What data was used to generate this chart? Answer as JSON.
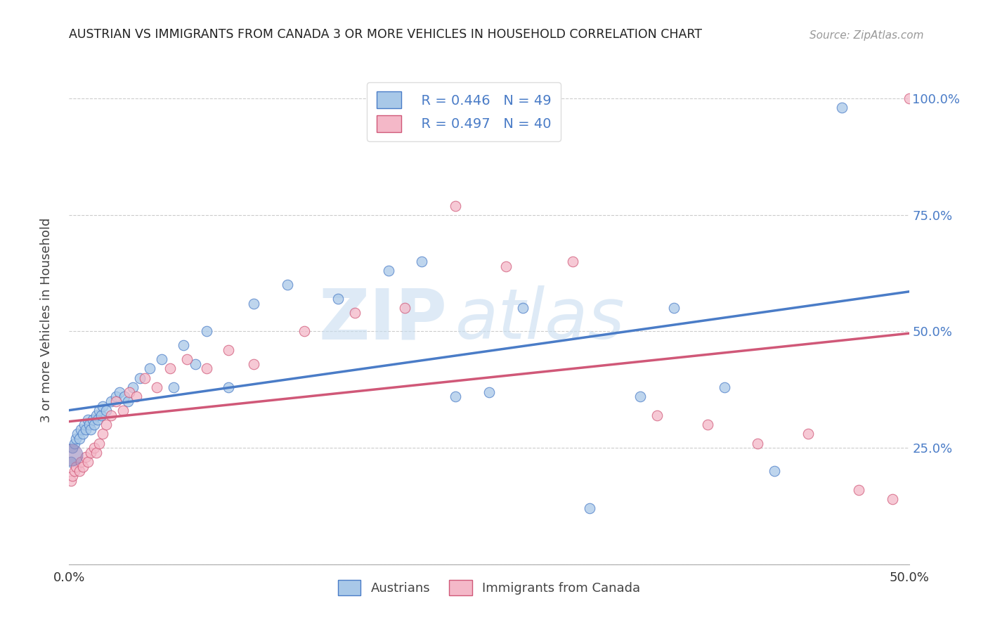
{
  "title": "AUSTRIAN VS IMMIGRANTS FROM CANADA 3 OR MORE VEHICLES IN HOUSEHOLD CORRELATION CHART",
  "source": "Source: ZipAtlas.com",
  "ylabel": "3 or more Vehicles in Household",
  "xlim": [
    0.0,
    0.5
  ],
  "ylim": [
    0.0,
    1.05
  ],
  "legend_labels": [
    "Austrians",
    "Immigrants from Canada"
  ],
  "blue_R": "R = 0.446",
  "blue_N": "N = 49",
  "pink_R": "R = 0.497",
  "pink_N": "N = 40",
  "blue_color": "#a8c8e8",
  "pink_color": "#f4b8c8",
  "blue_line_color": "#4a7cc7",
  "pink_line_color": "#d05878",
  "austrians_x": [
    0.001,
    0.002,
    0.003,
    0.004,
    0.005,
    0.006,
    0.007,
    0.008,
    0.009,
    0.01,
    0.011,
    0.012,
    0.013,
    0.014,
    0.015,
    0.016,
    0.017,
    0.018,
    0.019,
    0.02,
    0.022,
    0.025,
    0.028,
    0.03,
    0.033,
    0.035,
    0.038,
    0.042,
    0.048,
    0.055,
    0.062,
    0.068,
    0.075,
    0.082,
    0.095,
    0.11,
    0.13,
    0.16,
    0.19,
    0.21,
    0.23,
    0.25,
    0.27,
    0.31,
    0.34,
    0.36,
    0.39,
    0.42,
    0.46
  ],
  "austrians_y": [
    0.22,
    0.25,
    0.26,
    0.27,
    0.28,
    0.27,
    0.29,
    0.28,
    0.3,
    0.29,
    0.31,
    0.3,
    0.29,
    0.31,
    0.3,
    0.32,
    0.31,
    0.33,
    0.32,
    0.34,
    0.33,
    0.35,
    0.36,
    0.37,
    0.36,
    0.35,
    0.38,
    0.4,
    0.42,
    0.44,
    0.38,
    0.47,
    0.43,
    0.5,
    0.38,
    0.56,
    0.6,
    0.57,
    0.63,
    0.65,
    0.36,
    0.37,
    0.55,
    0.12,
    0.36,
    0.55,
    0.38,
    0.2,
    0.98
  ],
  "canada_x": [
    0.001,
    0.002,
    0.003,
    0.004,
    0.006,
    0.007,
    0.008,
    0.01,
    0.011,
    0.013,
    0.015,
    0.016,
    0.018,
    0.02,
    0.022,
    0.025,
    0.028,
    0.032,
    0.036,
    0.04,
    0.045,
    0.052,
    0.06,
    0.07,
    0.082,
    0.095,
    0.11,
    0.14,
    0.17,
    0.2,
    0.23,
    0.26,
    0.3,
    0.35,
    0.38,
    0.41,
    0.44,
    0.47,
    0.49,
    0.5
  ],
  "canada_y": [
    0.18,
    0.19,
    0.2,
    0.21,
    0.2,
    0.22,
    0.21,
    0.23,
    0.22,
    0.24,
    0.25,
    0.24,
    0.26,
    0.28,
    0.3,
    0.32,
    0.35,
    0.33,
    0.37,
    0.36,
    0.4,
    0.38,
    0.42,
    0.44,
    0.42,
    0.46,
    0.43,
    0.5,
    0.54,
    0.55,
    0.77,
    0.64,
    0.65,
    0.32,
    0.3,
    0.26,
    0.28,
    0.16,
    0.14,
    1.0
  ],
  "watermark_zip": "ZIP",
  "watermark_atlas": "atlas",
  "background_color": "#ffffff",
  "grid_color": "#cccccc",
  "grid_linestyle": "--",
  "right_tick_color": "#4a7cc7",
  "bottom_tick_color": "#333333"
}
